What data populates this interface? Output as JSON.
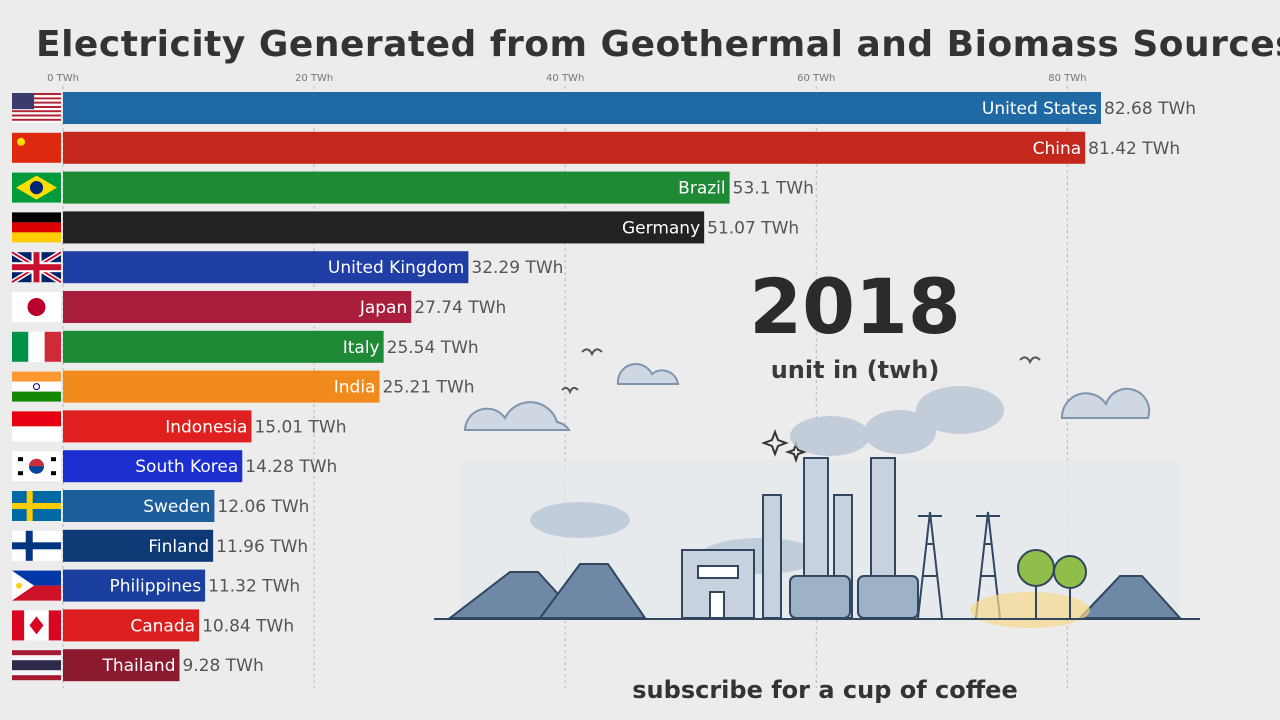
{
  "title": "Electricity Generated from Geothermal and Biomass Sources",
  "year": "2018",
  "unit_label": "unit in (twh)",
  "footer": "subscribe for a cup of coffee",
  "chart_data": {
    "type": "bar",
    "orientation": "horizontal",
    "title": "Electricity Generated from Geothermal and Biomass Sources",
    "xlim": [
      0,
      82.68
    ],
    "ticks": [
      0,
      20,
      40,
      60,
      80
    ],
    "tick_labels": [
      "0 TWh",
      "20 TWh",
      "40 TWh",
      "60 TWh",
      "80 TWh"
    ],
    "grid": true,
    "categories": [
      "United States",
      "China",
      "Brazil",
      "Germany",
      "United Kingdom",
      "Japan",
      "Italy",
      "India",
      "Indonesia",
      "South Korea",
      "Sweden",
      "Finland",
      "Philippines",
      "Canada",
      "Thailand"
    ],
    "values": [
      82.68,
      81.42,
      53.1,
      51.07,
      32.29,
      27.74,
      25.54,
      25.21,
      15.01,
      14.28,
      12.06,
      11.96,
      11.32,
      10.84,
      9.28
    ],
    "value_labels": [
      "82.68 TWh",
      "81.42 TWh",
      "53.1 TWh",
      "51.07 TWh",
      "32.29 TWh",
      "27.74 TWh",
      "25.54 TWh",
      "25.21 TWh",
      "15.01 TWh",
      "14.28 TWh",
      "12.06 TWh",
      "11.96 TWh",
      "11.32 TWh",
      "10.84 TWh",
      "9.28 TWh"
    ],
    "colors": [
      "#1f6aa5",
      "#c4271c",
      "#1e8a35",
      "#222222",
      "#1f3ea6",
      "#a81e3c",
      "#1e8a35",
      "#f08a1c",
      "#e0201e",
      "#1b2fd1",
      "#1c5e9c",
      "#0d3a75",
      "#1a3f9e",
      "#dc1e1e",
      "#8c1a2e"
    ],
    "flags": [
      "us-flag-icon",
      "cn-flag-icon",
      "br-flag-icon",
      "de-flag-icon",
      "gb-flag-icon",
      "jp-flag-icon",
      "it-flag-icon",
      "in-flag-icon",
      "id-flag-icon",
      "kr-flag-icon",
      "se-flag-icon",
      "fi-flag-icon",
      "ph-flag-icon",
      "ca-flag-icon",
      "th-flag-icon"
    ]
  }
}
